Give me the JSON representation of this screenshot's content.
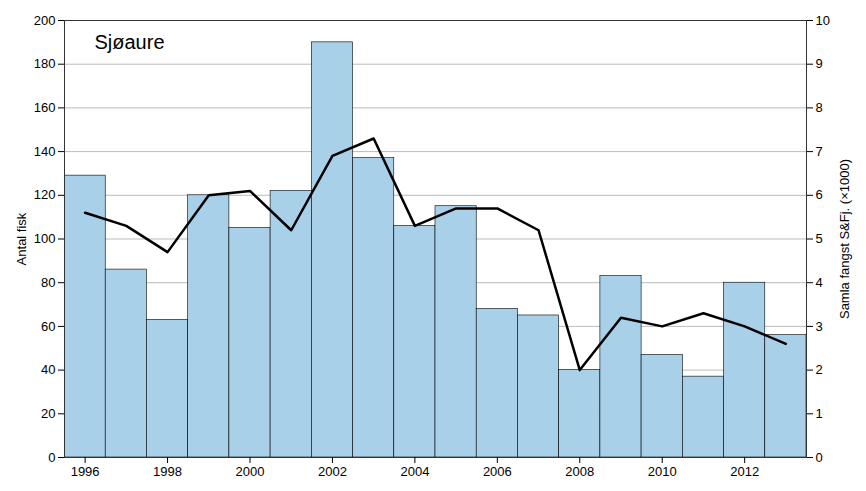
{
  "chart_data": {
    "type": "bar",
    "title": "Sjøaure",
    "x": [
      1996,
      1997,
      1998,
      1999,
      2000,
      2001,
      2002,
      2003,
      2004,
      2005,
      2006,
      2007,
      2008,
      2009,
      2010,
      2011,
      2012,
      2013
    ],
    "series": [
      {
        "type": "bar",
        "color": "#a8d0e8",
        "values": [
          129,
          86,
          63,
          120,
          105,
          122,
          190,
          137,
          106,
          115,
          68,
          65,
          40,
          83,
          47,
          37,
          80,
          56
        ]
      },
      {
        "type": "line",
        "color": "#000000",
        "axis": "y2",
        "values": [
          5.6,
          5.3,
          4.7,
          6.0,
          6.1,
          5.2,
          6.9,
          7.3,
          5.3,
          5.7,
          5.7,
          5.2,
          2.0,
          3.2,
          3.0,
          3.3,
          3.0,
          2.6
        ]
      }
    ],
    "ylabel": "Antal fisk",
    "y2label": "Samla fangst S&Fj. (×1000)",
    "xlim": [
      1995.5,
      2013.5
    ],
    "xticks": [
      1996,
      1998,
      2000,
      2002,
      2004,
      2006,
      2008,
      2010,
      2012
    ],
    "ylim": [
      0,
      200
    ],
    "yticks": [
      0,
      20,
      40,
      60,
      80,
      100,
      120,
      140,
      160,
      180,
      200
    ],
    "y2lim": [
      0,
      10
    ],
    "y2ticks": [
      0,
      1,
      2,
      3,
      4,
      5,
      6,
      7,
      8,
      9,
      10
    ],
    "grid": true
  }
}
